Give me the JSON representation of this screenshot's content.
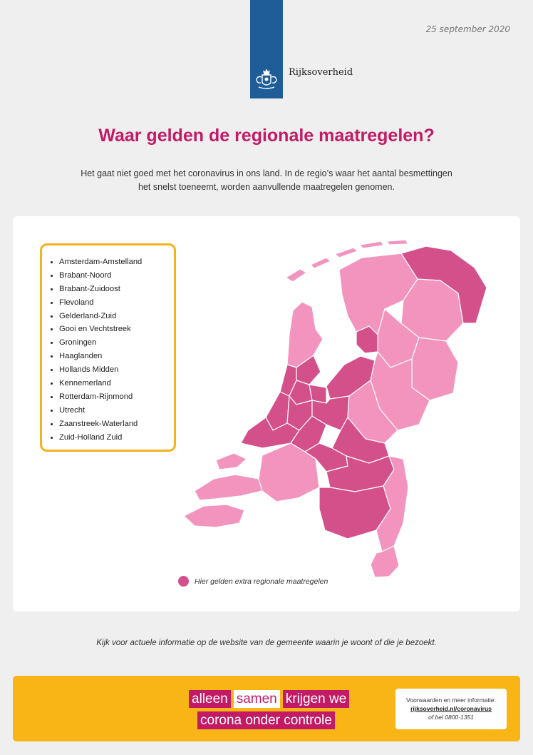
{
  "header": {
    "date": "25 september 2020",
    "logo_text": "Rijksoverheid",
    "emblem_icon": "coat-of-arms-icon"
  },
  "title": "Waar gelden de regionale maatregelen?",
  "intro": "Het gaat niet goed met het coronavirus in ons land. In de regio’s waar het aantal besmettingen het snelst toeneemt, worden aanvullende maatregelen genomen.",
  "regions": [
    "Amsterdam-Amstelland",
    "Brabant-Noord",
    "Brabant-Zuidoost",
    "Flevoland",
    "Gelderland-Zuid",
    "Gooi en Vechtstreek",
    "Groningen",
    "Haaglanden",
    "Hollands Midden",
    "Kennemerland",
    "Rotterdam-Rijnmond",
    "Utrecht",
    "Zaanstreek-Waterland",
    "Zuid-Holland Zuid"
  ],
  "legend": {
    "label": "Hier gelden extra regionale maatregelen",
    "color": "#d4508b"
  },
  "map_colors": {
    "measures": "#d4508b",
    "other": "#f394bf",
    "border": "#ffffff"
  },
  "footnote": "Kijk voor actuele informatie op de website van de gemeente waarin je woont of die je bezoekt.",
  "banner": {
    "slogan_line1": [
      "alleen",
      "samen",
      "krijgen we"
    ],
    "slogan_line2": "corona onder controle",
    "info_label": "Voorwaarden en meer informatie:",
    "info_link": "rijksoverheid.nl/coronavirus",
    "info_phone": "of bel 0800-1351"
  },
  "colors": {
    "accent": "#c21a64",
    "logo_blue": "#1f5d99",
    "banner": "#f8b515",
    "box_border": "#f5b21b"
  }
}
